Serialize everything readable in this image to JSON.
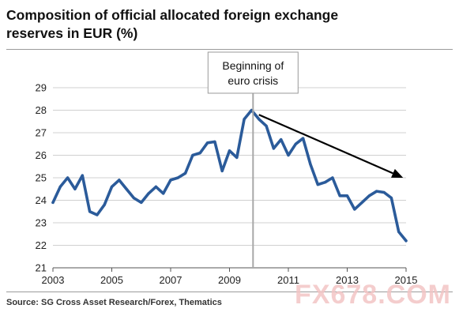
{
  "chart_data": {
    "type": "line",
    "title_line1": "Composition of official allocated foreign exchange",
    "title_line2": "reserves in EUR (%)",
    "ylim": [
      21,
      29
    ],
    "yticks": [
      "21",
      "22",
      "23",
      "24",
      "25",
      "26",
      "27",
      "28",
      "29"
    ],
    "xlim": [
      2003,
      2015
    ],
    "xticks": [
      "2003",
      "2005",
      "2007",
      "2009",
      "2011",
      "2013",
      "2015"
    ],
    "grid": "horizontal",
    "series": [
      {
        "color": "#2b5b9a",
        "x": [
          2003.0,
          2003.25,
          2003.5,
          2003.75,
          2004.0,
          2004.25,
          2004.5,
          2004.75,
          2005.0,
          2005.25,
          2005.5,
          2005.75,
          2006.0,
          2006.25,
          2006.5,
          2006.75,
          2007.0,
          2007.25,
          2007.5,
          2007.75,
          2008.0,
          2008.25,
          2008.5,
          2008.75,
          2009.0,
          2009.25,
          2009.5,
          2009.75,
          2010.0,
          2010.25,
          2010.5,
          2010.75,
          2011.0,
          2011.25,
          2011.5,
          2011.75,
          2012.0,
          2012.25,
          2012.5,
          2012.75,
          2013.0,
          2013.25,
          2013.5,
          2013.75,
          2014.0,
          2014.25,
          2014.5,
          2014.75,
          2015.0
        ],
        "y": [
          23.9,
          24.6,
          25.0,
          24.5,
          25.1,
          23.5,
          23.35,
          23.8,
          24.6,
          24.9,
          24.5,
          24.1,
          23.9,
          24.3,
          24.6,
          24.3,
          24.9,
          25.0,
          25.2,
          26.0,
          26.1,
          26.55,
          26.6,
          25.3,
          26.2,
          25.9,
          27.6,
          28.0,
          27.6,
          27.3,
          26.3,
          26.7,
          26.0,
          26.5,
          26.75,
          25.6,
          24.7,
          24.8,
          25.0,
          24.2,
          24.2,
          23.6,
          23.9,
          24.2,
          24.4,
          24.35,
          24.1,
          22.6,
          22.2
        ]
      }
    ],
    "annotation_line1": "Beginning of",
    "annotation_line2": "euro crisis",
    "annotation_x": 2009.8,
    "arrow_from": [
      2010.0,
      27.8
    ],
    "arrow_to": [
      2014.9,
      25.0
    ]
  },
  "footer": {
    "source": "Source: SG Cross Asset Research/Forex, Thematics",
    "watermark": "FX678.COM"
  },
  "colors": {
    "line": "#2b5b9a",
    "grid": "#d0d0d0",
    "annotation_rule": "#a8a8a8",
    "arrow": "#000000",
    "watermark": "#f3c5c5"
  }
}
